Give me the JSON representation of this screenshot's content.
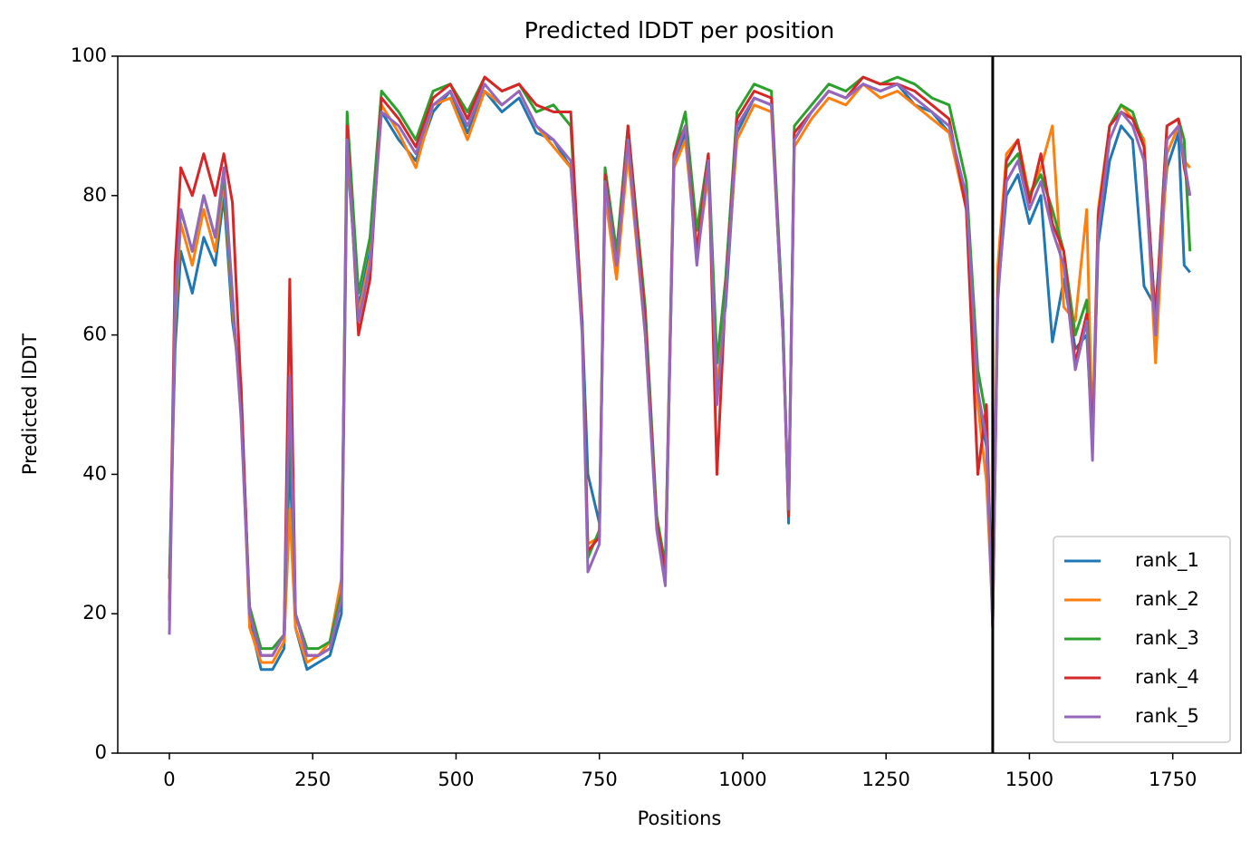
{
  "chart_data": {
    "type": "line",
    "title": "Predicted lDDT per position",
    "xlabel": "Positions",
    "ylabel": "Predicted lDDT",
    "x": [
      0,
      10,
      20,
      40,
      60,
      80,
      95,
      110,
      125,
      140,
      160,
      180,
      200,
      210,
      220,
      240,
      260,
      280,
      300,
      310,
      330,
      350,
      370,
      400,
      430,
      460,
      490,
      520,
      550,
      580,
      610,
      640,
      670,
      700,
      720,
      730,
      750,
      760,
      780,
      800,
      830,
      850,
      865,
      880,
      900,
      920,
      940,
      955,
      970,
      990,
      1020,
      1050,
      1070,
      1080,
      1090,
      1120,
      1150,
      1180,
      1210,
      1240,
      1270,
      1300,
      1330,
      1360,
      1390,
      1410,
      1425,
      1436,
      1445,
      1460,
      1480,
      1500,
      1520,
      1540,
      1560,
      1580,
      1600,
      1610,
      1620,
      1640,
      1660,
      1680,
      1700,
      1720,
      1740,
      1760,
      1770,
      1780
    ],
    "series": [
      {
        "name": "rank_1",
        "color": "#1f77b4",
        "values": [
          25,
          58,
          72,
          66,
          74,
          70,
          80,
          62,
          53,
          19,
          12,
          12,
          15,
          43,
          18,
          12,
          13,
          14,
          20,
          86,
          64,
          72,
          92,
          88,
          85,
          92,
          95,
          89,
          95,
          92,
          94,
          89,
          88,
          84,
          62,
          40,
          33,
          80,
          72,
          87,
          62,
          33,
          25,
          84,
          89,
          72,
          84,
          56,
          64,
          89,
          94,
          93,
          62,
          33,
          88,
          92,
          95,
          94,
          96,
          95,
          96,
          93,
          92,
          89,
          80,
          50,
          44,
          22,
          66,
          80,
          83,
          76,
          80,
          59,
          68,
          58,
          60,
          45,
          73,
          85,
          90,
          88,
          67,
          64,
          84,
          89,
          70,
          69
        ]
      },
      {
        "name": "rank_2",
        "color": "#ff7f0e",
        "values": [
          20,
          62,
          76,
          70,
          78,
          72,
          82,
          64,
          50,
          18,
          13,
          13,
          16,
          35,
          18,
          13,
          14,
          16,
          25,
          87,
          63,
          71,
          93,
          89,
          84,
          93,
          94,
          88,
          95,
          93,
          95,
          90,
          87,
          84,
          61,
          30,
          31,
          80,
          68,
          86,
          60,
          33,
          26,
          84,
          88,
          71,
          83,
          52,
          66,
          88,
          93,
          92,
          61,
          34,
          87,
          91,
          94,
          93,
          96,
          94,
          95,
          93,
          91,
          89,
          78,
          50,
          39,
          20,
          70,
          86,
          88,
          80,
          84,
          90,
          64,
          62,
          78,
          45,
          78,
          90,
          93,
          91,
          88,
          56,
          86,
          90,
          85,
          84
        ]
      },
      {
        "name": "rank_3",
        "color": "#2ca02c",
        "values": [
          22,
          64,
          78,
          72,
          80,
          74,
          83,
          65,
          50,
          21,
          15,
          15,
          17,
          50,
          20,
          15,
          15,
          16,
          23,
          92,
          66,
          74,
          95,
          92,
          88,
          95,
          96,
          92,
          97,
          95,
          96,
          92,
          93,
          90,
          62,
          28,
          32,
          84,
          72,
          90,
          64,
          34,
          27,
          86,
          92,
          75,
          86,
          56,
          68,
          92,
          96,
          95,
          62,
          34,
          90,
          93,
          96,
          95,
          97,
          96,
          97,
          96,
          94,
          93,
          82,
          55,
          48,
          20,
          67,
          84,
          86,
          80,
          83,
          78,
          72,
          60,
          65,
          44,
          76,
          90,
          93,
          92,
          87,
          62,
          90,
          91,
          88,
          72
        ]
      },
      {
        "name": "rank_4",
        "color": "#d62728",
        "values": [
          19,
          70,
          84,
          80,
          86,
          80,
          86,
          79,
          52,
          20,
          14,
          14,
          17,
          68,
          20,
          14,
          14,
          15,
          22,
          90,
          60,
          68,
          94,
          91,
          87,
          94,
          96,
          91,
          97,
          95,
          96,
          93,
          92,
          92,
          61,
          29,
          31,
          83,
          70,
          90,
          62,
          33,
          26,
          86,
          90,
          72,
          86,
          40,
          66,
          91,
          95,
          94,
          60,
          34,
          89,
          92,
          95,
          94,
          97,
          96,
          96,
          95,
          93,
          91,
          78,
          40,
          50,
          18,
          66,
          85,
          88,
          79,
          86,
          76,
          72,
          56,
          63,
          44,
          77,
          90,
          92,
          91,
          87,
          62,
          90,
          91,
          84,
          80
        ]
      },
      {
        "name": "rank_5",
        "color": "#9467bd",
        "values": [
          17,
          65,
          78,
          72,
          80,
          74,
          84,
          66,
          48,
          20,
          14,
          14,
          17,
          54,
          20,
          14,
          14,
          15,
          22,
          88,
          62,
          70,
          92,
          90,
          86,
          93,
          95,
          90,
          96,
          93,
          95,
          90,
          88,
          85,
          60,
          26,
          30,
          82,
          70,
          88,
          60,
          32,
          24,
          85,
          90,
          70,
          85,
          50,
          65,
          90,
          94,
          93,
          60,
          35,
          88,
          92,
          95,
          94,
          96,
          95,
          96,
          94,
          92,
          90,
          80,
          52,
          45,
          18,
          65,
          82,
          85,
          78,
          82,
          75,
          70,
          55,
          62,
          42,
          75,
          88,
          92,
          90,
          85,
          60,
          88,
          90,
          85,
          80
        ]
      }
    ],
    "vline": 1436,
    "vline_color": "#000000",
    "xlim": [
      -90,
      1869
    ],
    "xticks": [
      0,
      250,
      500,
      750,
      1000,
      1250,
      1500,
      1750
    ],
    "ylim": [
      0,
      100
    ],
    "yticks": [
      0,
      20,
      40,
      60,
      80,
      100
    ],
    "legend": "lower right",
    "grid": false
  }
}
